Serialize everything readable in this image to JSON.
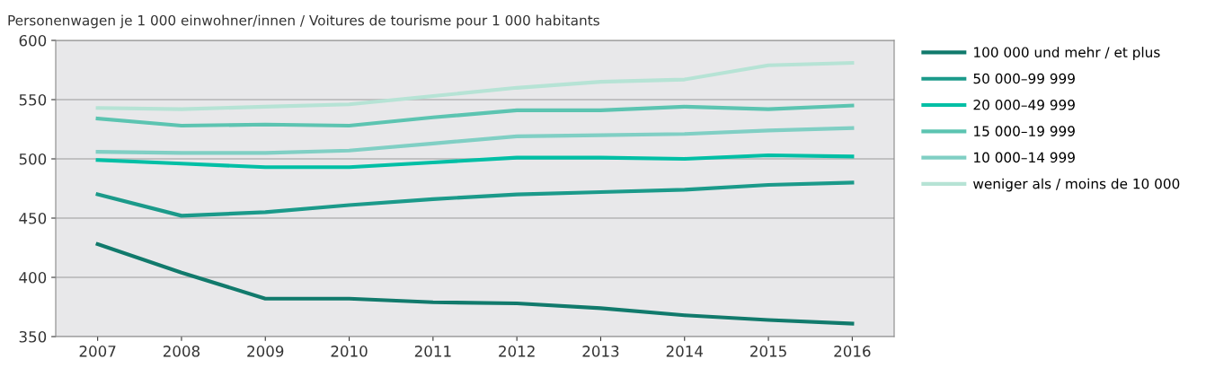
{
  "chart_data": {
    "type": "line",
    "ylabel": "Personenwagen je 1 000 einwohner/innen / Voitures de tourisme pour 1 000 habitants",
    "categories": [
      "2007",
      "2008",
      "2009",
      "2010",
      "2011",
      "2012",
      "2013",
      "2014",
      "2015",
      "2016"
    ],
    "series": [
      {
        "name": "100 000 und mehr / et plus",
        "color": "#117a6c",
        "values": [
          428,
          404,
          382,
          382,
          379,
          378,
          374,
          368,
          364,
          361
        ]
      },
      {
        "name": "50 000–99 999",
        "color": "#1b9a8a",
        "values": [
          470,
          452,
          455,
          461,
          466,
          470,
          472,
          474,
          478,
          480
        ]
      },
      {
        "name": "20 000–49 999",
        "color": "#00bfa5",
        "values": [
          499,
          496,
          493,
          493,
          497,
          501,
          501,
          500,
          503,
          502
        ]
      },
      {
        "name": "15 000–19 999",
        "color": "#5cc4b1",
        "values": [
          534,
          528,
          529,
          528,
          535,
          541,
          541,
          544,
          542,
          545
        ]
      },
      {
        "name": "10 000–14 999",
        "color": "#80cfc4",
        "values": [
          506,
          505,
          505,
          507,
          513,
          519,
          520,
          521,
          524,
          526
        ]
      },
      {
        "name": "weniger als / moins de 10 000",
        "color": "#b6e3d5",
        "values": [
          543,
          542,
          544,
          546,
          553,
          560,
          565,
          567,
          579,
          581
        ]
      }
    ],
    "ylim": [
      350,
      600
    ],
    "yticks": [
      350,
      400,
      450,
      500,
      550,
      600
    ],
    "grid": "y",
    "legend": "right",
    "marker": "none",
    "line_style": "solid"
  }
}
